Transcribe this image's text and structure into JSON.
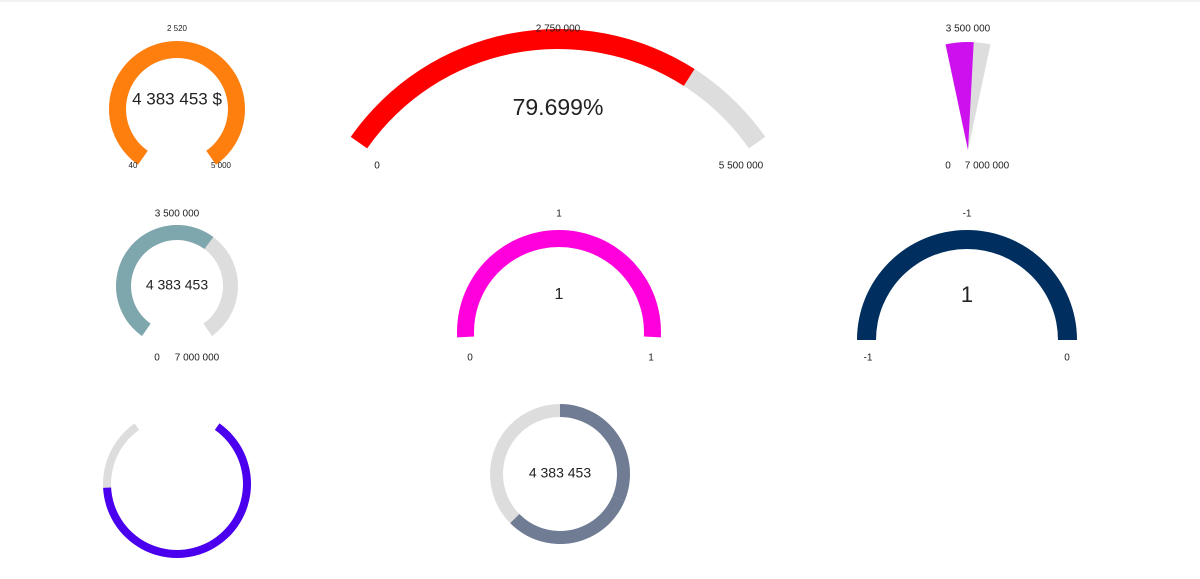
{
  "chart_data": [
    {
      "type": "gauge",
      "value": 4383453,
      "center_label": "4 383 453 $",
      "min_label": "40",
      "max_label": "5 000",
      "mid_label": "2 520",
      "fill_fraction": 1.0,
      "fill_color": "#ff7f0e",
      "track_color": "#dddddd"
    },
    {
      "type": "gauge",
      "value": 4383453,
      "center_label": "79.699%",
      "min_label": "0",
      "max_label": "5 500 000",
      "mid_label": "2 750 000",
      "fill_fraction": 0.797,
      "fill_color": "#ff0000",
      "track_color": "#dddddd"
    },
    {
      "type": "gauge",
      "value": 4383453,
      "center_label": "",
      "min_label": "0",
      "max_label": "7 000 000",
      "mid_label": "3 500 000",
      "fill_fraction": 0.626,
      "fill_color": "#cc11ee",
      "track_color": "#dddddd"
    },
    {
      "type": "gauge",
      "value": 4383453,
      "center_label": "4 383 453",
      "min_label": "0",
      "max_label": "7 000 000",
      "mid_label": "3 500 000",
      "fill_fraction": 0.626,
      "fill_color": "#7ea6ad",
      "track_color": "#dddddd"
    },
    {
      "type": "gauge",
      "value": 1,
      "center_label": "1",
      "min_label": "0",
      "max_label": "1",
      "mid_label": "1",
      "fill_fraction": 1.0,
      "fill_color": "#ff00dd",
      "track_color": "#dddddd"
    },
    {
      "type": "gauge",
      "value": 1,
      "center_label": "1",
      "min_label": "-1",
      "max_label": "0",
      "mid_label": "-1",
      "fill_fraction": 1.0,
      "fill_color": "#002f5f",
      "track_color": "#dddddd"
    },
    {
      "type": "gauge",
      "value": 4383453,
      "center_label": "",
      "min_label": "",
      "max_label": "",
      "mid_label": "",
      "fill_fraction": 0.8,
      "fill_color": "#4a00ee",
      "track_color": "#dddddd"
    },
    {
      "type": "gauge",
      "value": 4383453,
      "center_label": "4 383 453",
      "min_label": "",
      "max_label": "",
      "mid_label": "",
      "fill_fraction": 0.626,
      "fill_color": "#6f7c93",
      "track_color": "#dddddd"
    }
  ]
}
